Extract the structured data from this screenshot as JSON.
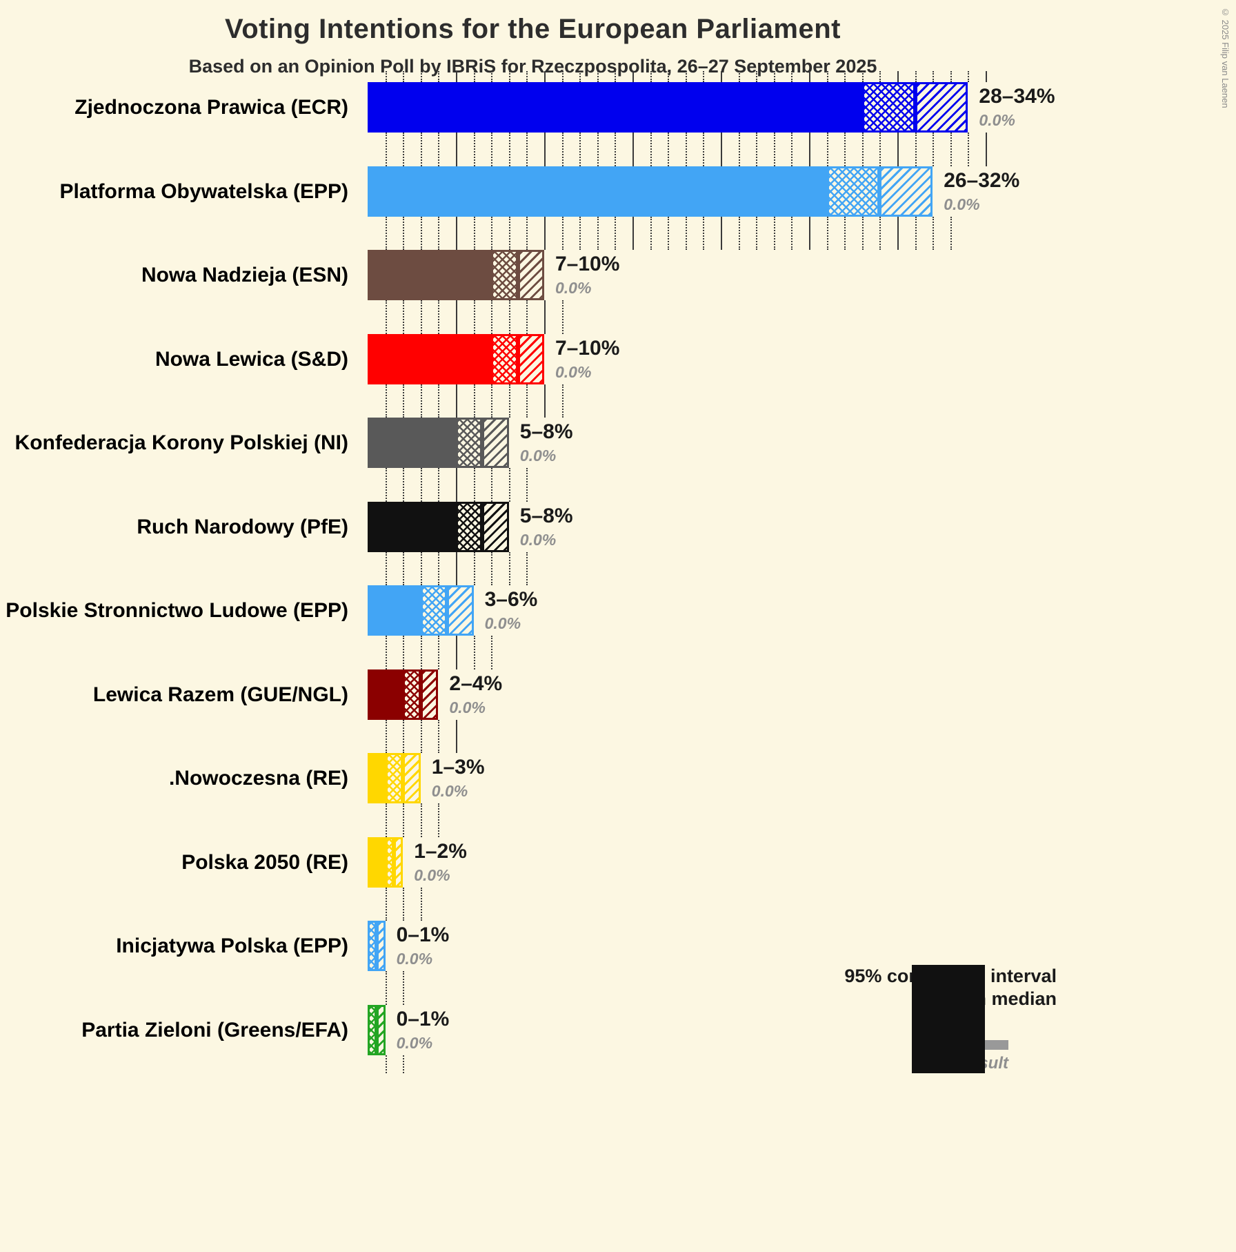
{
  "title": "Voting Intentions for the European Parliament",
  "subtitle": "Based on an Opinion Poll by IBRiS for Rzeczpospolita, 26–27 September 2025",
  "copyright": "© 2025 Filip van Laenen",
  "colors": {
    "background": "#FCF7E2",
    "gridline": "#3a3a3a",
    "text": "#1a1a1a",
    "muted_text": "#8f8f8f",
    "legend_ci": "#111111",
    "legend_last_result": "#999999"
  },
  "legend": {
    "line1": "95% confidence interval",
    "line2": "with median",
    "last_result_label": "Last result"
  },
  "chart_data": {
    "type": "bar",
    "orientation": "horizontal",
    "unit": "%",
    "title": "Voting Intentions for the European Parliament",
    "subtitle": "Based on an Opinion Poll by IBRiS for Rzeczpospolita, 26–27 September 2025",
    "x_axis": {
      "min": 0,
      "max": 35,
      "gridline_step": 1,
      "solid_gridline_step": 5,
      "grid": true
    },
    "value_semantics": [
      "low = 95% CI lower bound",
      "median",
      "high = 95% CI upper bound",
      "last_result"
    ],
    "parties": [
      {
        "label": "Zjednoczona Prawica (ECR)",
        "low": 28,
        "median": 31,
        "high": 34,
        "range_label": "28–34%",
        "last_result": 0.0,
        "last_result_label": "0.0%",
        "color": "#0000EE"
      },
      {
        "label": "Platforma Obywatelska (EPP)",
        "low": 26,
        "median": 29,
        "high": 32,
        "range_label": "26–32%",
        "last_result": 0.0,
        "last_result_label": "0.0%",
        "color": "#42A5F5"
      },
      {
        "label": "Nowa Nadzieja (ESN)",
        "low": 7,
        "median": 8.5,
        "high": 10,
        "range_label": "7–10%",
        "last_result": 0.0,
        "last_result_label": "0.0%",
        "color": "#6D4C41"
      },
      {
        "label": "Nowa Lewica (S&D)",
        "low": 7,
        "median": 8.5,
        "high": 10,
        "range_label": "7–10%",
        "last_result": 0.0,
        "last_result_label": "0.0%",
        "color": "#FF0000"
      },
      {
        "label": "Konfederacja Korony Polskiej (NI)",
        "low": 5,
        "median": 6.5,
        "high": 8,
        "range_label": "5–8%",
        "last_result": 0.0,
        "last_result_label": "0.0%",
        "color": "#595959"
      },
      {
        "label": "Ruch Narodowy (PfE)",
        "low": 5,
        "median": 6.5,
        "high": 8,
        "range_label": "5–8%",
        "last_result": 0.0,
        "last_result_label": "0.0%",
        "color": "#111111"
      },
      {
        "label": "Polskie Stronnictwo Ludowe (EPP)",
        "low": 3,
        "median": 4.5,
        "high": 6,
        "range_label": "3–6%",
        "last_result": 0.0,
        "last_result_label": "0.0%",
        "color": "#42A5F5"
      },
      {
        "label": "Lewica Razem (GUE/NGL)",
        "low": 2,
        "median": 3,
        "high": 4,
        "range_label": "2–4%",
        "last_result": 0.0,
        "last_result_label": "0.0%",
        "color": "#8B0000"
      },
      {
        "label": ".Nowoczesna (RE)",
        "low": 1,
        "median": 2,
        "high": 3,
        "range_label": "1–3%",
        "last_result": 0.0,
        "last_result_label": "0.0%",
        "color": "#FFD700"
      },
      {
        "label": "Polska 2050 (RE)",
        "low": 1,
        "median": 1.5,
        "high": 2,
        "range_label": "1–2%",
        "last_result": 0.0,
        "last_result_label": "0.0%",
        "color": "#FFD700"
      },
      {
        "label": "Inicjatywa Polska (EPP)",
        "low": 0,
        "median": 0.5,
        "high": 1,
        "range_label": "0–1%",
        "last_result": 0.0,
        "last_result_label": "0.0%",
        "color": "#42A5F5"
      },
      {
        "label": "Partia Zieloni (Greens/EFA)",
        "low": 0,
        "median": 0.5,
        "high": 1,
        "range_label": "0–1%",
        "last_result": 0.0,
        "last_result_label": "0.0%",
        "color": "#23A523"
      }
    ]
  }
}
